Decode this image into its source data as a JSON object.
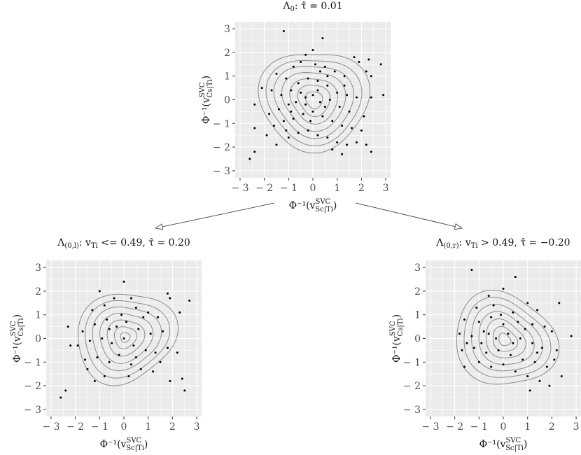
{
  "chart_data": [
    {
      "type": "scatter",
      "title": "Λ0: τ̂ = 0.01",
      "title_parts": {
        "symbol": "Λ",
        "sub": "0",
        "rest": ": τ̂ = 0.01"
      },
      "xlabel": {
        "prefix": "Φ⁻¹(v",
        "sup": "SVC",
        "sub": "Sc|Ti",
        "suffix": ")"
      },
      "ylabel": {
        "prefix": "Φ⁻¹(v",
        "sup": "SVC",
        "sub": "Cs|Ti",
        "suffix": ")"
      },
      "xlim": [
        -3.2,
        3.2
      ],
      "ylim": [
        -3.3,
        3.3
      ],
      "xticks": [
        -3,
        -2,
        -1,
        0,
        1,
        2,
        3
      ],
      "yticks": [
        -3,
        -2,
        -1,
        0,
        1,
        2,
        3
      ],
      "grid": true,
      "contour_levels": [
        2.15,
        1.85,
        1.55,
        1.25,
        0.95,
        0.65,
        0.35
      ],
      "contour_center": [
        0.05,
        0.0
      ],
      "points": [
        [
          -1.2,
          2.9
        ],
        [
          0.4,
          2.6
        ],
        [
          0.0,
          2.1
        ],
        [
          -0.3,
          1.9
        ],
        [
          1.7,
          1.8
        ],
        [
          1.9,
          1.6
        ],
        [
          2.3,
          1.7
        ],
        [
          2.8,
          1.5
        ],
        [
          2.2,
          1.2
        ],
        [
          2.4,
          1.0
        ],
        [
          -1.5,
          1.1
        ],
        [
          -1.1,
          0.9
        ],
        [
          -0.8,
          1.4
        ],
        [
          -0.5,
          1.6
        ],
        [
          0.1,
          1.5
        ],
        [
          0.5,
          1.4
        ],
        [
          0.9,
          1.2
        ],
        [
          1.3,
          1.0
        ],
        [
          -1.7,
          0.4
        ],
        [
          -2.1,
          0.5
        ],
        [
          -2.4,
          -0.2
        ],
        [
          -1.3,
          0.2
        ],
        [
          -0.9,
          0.4
        ],
        [
          -0.6,
          0.7
        ],
        [
          -0.2,
          0.9
        ],
        [
          0.2,
          0.8
        ],
        [
          0.6,
          0.6
        ],
        [
          1.0,
          0.3
        ],
        [
          1.4,
          0.2
        ],
        [
          1.8,
          0.1
        ],
        [
          2.4,
          0.1
        ],
        [
          2.9,
          0.2
        ],
        [
          -1.8,
          -0.6
        ],
        [
          -1.4,
          -0.4
        ],
        [
          -1.0,
          -0.2
        ],
        [
          -0.7,
          -0.1
        ],
        [
          -0.3,
          0.1
        ],
        [
          0.0,
          0.2
        ],
        [
          0.3,
          -0.1
        ],
        [
          0.7,
          0.0
        ],
        [
          1.1,
          -0.3
        ],
        [
          1.5,
          -0.5
        ],
        [
          2.1,
          -0.7
        ],
        [
          -1.6,
          -1.1
        ],
        [
          -1.2,
          -0.9
        ],
        [
          -0.8,
          -0.8
        ],
        [
          -0.4,
          -0.6
        ],
        [
          0.0,
          -0.5
        ],
        [
          0.4,
          -0.7
        ],
        [
          0.8,
          -0.9
        ],
        [
          1.2,
          -1.1
        ],
        [
          1.6,
          -1.2
        ],
        [
          2.0,
          -1.3
        ],
        [
          -2.4,
          -1.2
        ],
        [
          -1.9,
          -1.5
        ],
        [
          -1.5,
          -1.9
        ],
        [
          -1.0,
          -1.6
        ],
        [
          -0.6,
          -1.4
        ],
        [
          -0.2,
          -1.3
        ],
        [
          0.2,
          -1.5
        ],
        [
          0.6,
          -1.6
        ],
        [
          1.0,
          -1.8
        ],
        [
          1.4,
          -1.9
        ],
        [
          1.8,
          -1.8
        ],
        [
          2.2,
          -1.9
        ],
        [
          2.4,
          -2.2
        ],
        [
          -2.4,
          -2.2
        ],
        [
          -2.6,
          -2.5
        ],
        [
          1.2,
          -2.3
        ],
        [
          0.8,
          -2.1
        ],
        [
          -0.3,
          -0.2
        ],
        [
          0.2,
          0.4
        ],
        [
          -0.1,
          -0.9
        ],
        [
          0.5,
          -0.3
        ],
        [
          -0.5,
          0.3
        ],
        [
          0.6,
          1.0
        ],
        [
          -0.9,
          -0.5
        ],
        [
          1.3,
          0.6
        ],
        [
          -1.1,
          -1.3
        ],
        [
          0.3,
          1.2
        ]
      ]
    },
    {
      "type": "scatter",
      "title": "Λ(0,l): vTi <= 0.49, τ̂ = 0.20",
      "title_parts": {
        "symbol": "Λ",
        "sub": "(0,l)",
        "var": "v",
        "var_sub": "Ti",
        "rest": " <= 0.49, τ̂ = 0.20"
      },
      "xlabel": {
        "prefix": "Φ⁻¹(v",
        "sup": "SVC",
        "sub": "Sc|Ti",
        "suffix": ")"
      },
      "ylabel": {
        "prefix": "Φ⁻¹(v",
        "sup": "SVC",
        "sub": "Cs|Ti",
        "suffix": ")"
      },
      "xlim": [
        -3.2,
        3.2
      ],
      "ylim": [
        -3.3,
        3.3
      ],
      "xticks": [
        -3,
        -2,
        -1,
        0,
        1,
        2,
        3
      ],
      "yticks": [
        -3,
        -2,
        -1,
        0,
        1,
        2,
        3
      ],
      "grid": true,
      "contour_levels": [
        1.95,
        1.65,
        1.35,
        1.05,
        0.75,
        0.45,
        0.2
      ],
      "contour_center": [
        0.05,
        0.05
      ],
      "points": [
        [
          0.0,
          2.4
        ],
        [
          -1.0,
          2.0
        ],
        [
          -0.4,
          1.7
        ],
        [
          0.3,
          1.7
        ],
        [
          1.8,
          1.9
        ],
        [
          1.9,
          1.7
        ],
        [
          2.7,
          1.6
        ],
        [
          2.3,
          1.1
        ],
        [
          -1.3,
          1.2
        ],
        [
          -0.8,
          1.4
        ],
        [
          0.5,
          1.3
        ],
        [
          1.0,
          1.1
        ],
        [
          1.4,
          0.9
        ],
        [
          -2.3,
          0.5
        ],
        [
          -1.7,
          0.3
        ],
        [
          -1.2,
          0.6
        ],
        [
          -0.7,
          0.8
        ],
        [
          -0.3,
          0.5
        ],
        [
          0.1,
          0.7
        ],
        [
          0.6,
          0.4
        ],
        [
          1.1,
          0.2
        ],
        [
          1.6,
          0.3
        ],
        [
          -1.9,
          -0.3
        ],
        [
          -1.4,
          -0.1
        ],
        [
          -0.9,
          0.0
        ],
        [
          -0.5,
          -0.2
        ],
        [
          0.0,
          0.0
        ],
        [
          0.4,
          -0.3
        ],
        [
          0.9,
          -0.5
        ],
        [
          1.3,
          -0.6
        ],
        [
          1.8,
          -0.4
        ],
        [
          2.2,
          -0.6
        ],
        [
          -1.6,
          -0.9
        ],
        [
          -1.1,
          -0.8
        ],
        [
          -0.6,
          -1.0
        ],
        [
          -0.2,
          -0.7
        ],
        [
          0.3,
          -1.1
        ],
        [
          0.7,
          -1.3
        ],
        [
          1.2,
          -1.4
        ],
        [
          -1.2,
          -1.8
        ],
        [
          -0.8,
          -1.6
        ],
        [
          0.2,
          -1.6
        ],
        [
          1.9,
          -1.8
        ],
        [
          2.5,
          -2.2
        ],
        [
          2.4,
          -1.7
        ],
        [
          -2.4,
          -2.2
        ],
        [
          -2.6,
          -2.5
        ],
        [
          -2.2,
          -0.3
        ],
        [
          0.8,
          0.9
        ],
        [
          -0.1,
          1.0
        ],
        [
          0.5,
          -0.8
        ],
        [
          -0.6,
          0.4
        ],
        [
          1.5,
          -1.0
        ],
        [
          -1.5,
          -1.3
        ]
      ]
    },
    {
      "type": "scatter",
      "title": "Λ(0,r): vTi > 0.49, τ̂ = −0.20",
      "title_parts": {
        "symbol": "Λ",
        "sub": "(0,r)",
        "var": "v",
        "var_sub": "Ti",
        "rest": " > 0.49, τ̂ = −0.20"
      },
      "xlabel": {
        "prefix": "Φ⁻¹(v",
        "sup": "SVC",
        "sub": "Sc|Ti",
        "suffix": ")"
      },
      "ylabel": {
        "prefix": "Φ⁻¹(v",
        "sup": "SVC",
        "sub": "Cs|Ti",
        "suffix": ")"
      },
      "xlim": [
        -3.2,
        3.2
      ],
      "ylim": [
        -3.3,
        3.3
      ],
      "xticks": [
        -3,
        -2,
        -1,
        0,
        1,
        2,
        3
      ],
      "yticks": [
        -3,
        -2,
        -1,
        0,
        1,
        2,
        3
      ],
      "grid": true,
      "contour_levels": [
        2.0,
        1.7,
        1.4,
        1.1,
        0.8,
        0.5,
        0.25
      ],
      "contour_center": [
        0.05,
        -0.05
      ],
      "points": [
        [
          -1.3,
          2.9
        ],
        [
          0.5,
          2.6
        ],
        [
          0.0,
          2.1
        ],
        [
          -0.6,
          1.8
        ],
        [
          2.3,
          1.5
        ],
        [
          1.0,
          1.5
        ],
        [
          1.4,
          1.2
        ],
        [
          -1.1,
          1.3
        ],
        [
          -0.4,
          1.4
        ],
        [
          0.4,
          1.1
        ],
        [
          -1.6,
          0.8
        ],
        [
          -1.0,
          0.7
        ],
        [
          -0.5,
          0.9
        ],
        [
          0.0,
          0.6
        ],
        [
          0.6,
          0.7
        ],
        [
          1.2,
          0.6
        ],
        [
          1.7,
          0.5
        ],
        [
          2.0,
          0.3
        ],
        [
          2.8,
          0.1
        ],
        [
          -1.8,
          0.2
        ],
        [
          -1.3,
          0.1
        ],
        [
          -0.8,
          0.3
        ],
        [
          -0.3,
          0.0
        ],
        [
          0.2,
          0.2
        ],
        [
          0.7,
          0.0
        ],
        [
          1.2,
          -0.2
        ],
        [
          1.6,
          -0.4
        ],
        [
          2.2,
          -0.5
        ],
        [
          -1.7,
          -0.5
        ],
        [
          -1.2,
          -0.4
        ],
        [
          -0.7,
          -0.6
        ],
        [
          -0.2,
          -0.5
        ],
        [
          0.3,
          -0.7
        ],
        [
          0.8,
          -0.9
        ],
        [
          1.3,
          -1.0
        ],
        [
          1.8,
          -1.2
        ],
        [
          -1.6,
          -1.2
        ],
        [
          -1.0,
          -1.0
        ],
        [
          -0.5,
          -1.2
        ],
        [
          0.0,
          -1.1
        ],
        [
          0.5,
          -1.4
        ],
        [
          1.0,
          -1.6
        ],
        [
          1.5,
          -1.8
        ],
        [
          1.9,
          -2.0
        ],
        [
          2.4,
          -1.6
        ],
        [
          1.1,
          -2.2
        ],
        [
          -1.5,
          -0.2
        ],
        [
          0.9,
          0.4
        ],
        [
          -0.1,
          1.0
        ],
        [
          0.4,
          -0.2
        ],
        [
          -0.9,
          -0.2
        ],
        [
          1.4,
          -0.6
        ],
        [
          -0.6,
          0.2
        ],
        [
          2.1,
          -0.9
        ]
      ]
    }
  ],
  "arrows": [
    {
      "from": "top",
      "to": "left"
    },
    {
      "from": "top",
      "to": "right"
    }
  ],
  "colors": {
    "panel": "#ebebeb",
    "grid": "#d0d0d0",
    "points": "#000000",
    "contour": "#8c8c8c",
    "border": "#333333",
    "tick_text": "#4d4d4d"
  }
}
